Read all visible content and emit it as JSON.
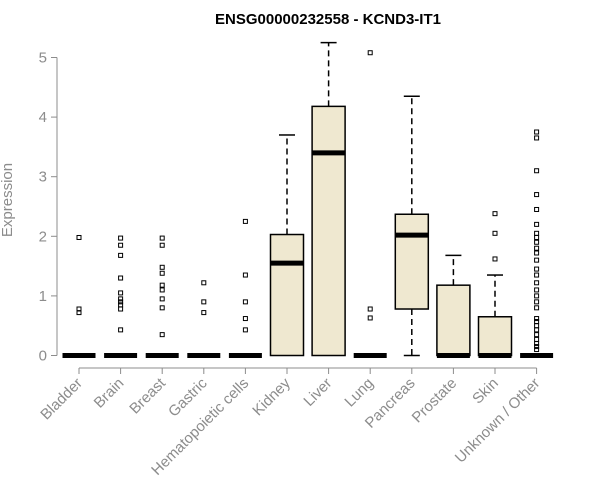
{
  "chart_data": {
    "type": "box",
    "title": "ENSG00000232558 - KCND3-IT1",
    "xlabel": "",
    "ylabel": "Expression",
    "ylim": [
      0,
      5.3
    ],
    "yticks": [
      0,
      1,
      2,
      3,
      4,
      5
    ],
    "grid": false,
    "box_fill": "#efe8d0",
    "categories": [
      "Bladder",
      "Brain",
      "Breast",
      "Gastric",
      "Hematopoietic cells",
      "Kidney",
      "Liver",
      "Lung",
      "Pancreas",
      "Prostate",
      "Skin",
      "Unknown / Other"
    ],
    "boxes": [
      {
        "name": "Bladder",
        "q1": 0,
        "median": 0,
        "q3": 0,
        "whisker_low": 0,
        "whisker_high": 0,
        "outliers": [
          0.72,
          0.78,
          1.98
        ]
      },
      {
        "name": "Brain",
        "q1": 0,
        "median": 0,
        "q3": 0,
        "whisker_low": 0,
        "whisker_high": 0,
        "outliers": [
          0.43,
          0.78,
          0.85,
          0.9,
          0.95,
          1.05,
          1.3,
          1.68,
          1.85,
          1.97
        ]
      },
      {
        "name": "Breast",
        "q1": 0,
        "median": 0,
        "q3": 0,
        "whisker_low": 0,
        "whisker_high": 0,
        "outliers": [
          0.35,
          0.8,
          0.95,
          1.1,
          1.18,
          1.38,
          1.48,
          1.85,
          1.97
        ]
      },
      {
        "name": "Gastric",
        "q1": 0,
        "median": 0,
        "q3": 0,
        "whisker_low": 0,
        "whisker_high": 0,
        "outliers": [
          0.72,
          0.9,
          1.22
        ]
      },
      {
        "name": "Hematopoietic cells",
        "q1": 0,
        "median": 0,
        "q3": 0,
        "whisker_low": 0,
        "whisker_high": 0,
        "outliers": [
          0.43,
          0.62,
          0.9,
          1.35,
          2.25
        ]
      },
      {
        "name": "Kidney",
        "q1": 0,
        "median": 1.55,
        "q3": 2.03,
        "whisker_low": 0,
        "whisker_high": 3.7,
        "outliers": []
      },
      {
        "name": "Liver",
        "q1": 0,
        "median": 3.4,
        "q3": 4.18,
        "whisker_low": 0,
        "whisker_high": 5.25,
        "outliers": []
      },
      {
        "name": "Lung",
        "q1": 0,
        "median": 0,
        "q3": 0,
        "whisker_low": 0,
        "whisker_high": 0,
        "outliers": [
          0.63,
          0.78,
          5.08
        ]
      },
      {
        "name": "Pancreas",
        "q1": 0.78,
        "median": 2.02,
        "q3": 2.37,
        "whisker_low": 0,
        "whisker_high": 4.35,
        "outliers": []
      },
      {
        "name": "Prostate",
        "q1": 0,
        "median": 0,
        "q3": 1.18,
        "whisker_low": 0,
        "whisker_high": 1.68,
        "outliers": []
      },
      {
        "name": "Skin",
        "q1": 0,
        "median": 0,
        "q3": 0.65,
        "whisker_low": 0,
        "whisker_high": 1.35,
        "outliers": [
          1.62,
          2.05,
          2.38
        ]
      },
      {
        "name": "Unknown / Other",
        "q1": 0,
        "median": 0,
        "q3": 0,
        "whisker_low": 0,
        "whisker_high": 0,
        "outliers": [
          0.1,
          0.15,
          0.2,
          0.27,
          0.35,
          0.43,
          0.5,
          0.57,
          0.62,
          0.8,
          0.9,
          1.0,
          1.1,
          1.22,
          1.35,
          1.45,
          1.6,
          1.72,
          1.8,
          1.9,
          1.98,
          2.05,
          2.2,
          2.45,
          2.7,
          3.1,
          3.65,
          3.75
        ]
      }
    ]
  }
}
